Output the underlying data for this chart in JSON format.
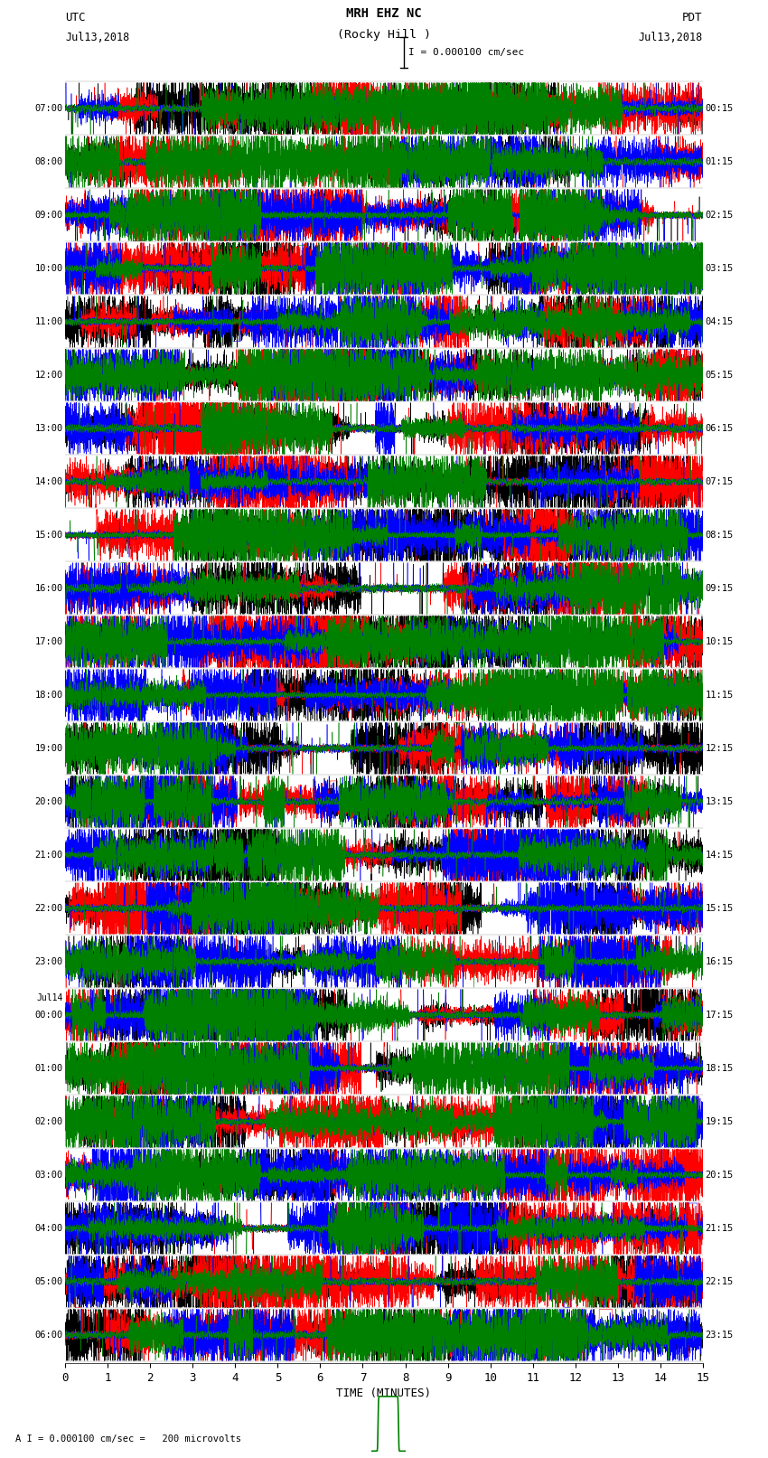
{
  "title_line1": "MRH EHZ NC",
  "title_line2": "(Rocky Hill )",
  "scale_label": "I = 0.000100 cm/sec",
  "bottom_label": "A I = 0.000100 cm/sec =   200 microvolts",
  "xlabel": "TIME (MINUTES)",
  "utc_times": [
    "07:00",
    "08:00",
    "09:00",
    "10:00",
    "11:00",
    "12:00",
    "13:00",
    "14:00",
    "15:00",
    "16:00",
    "17:00",
    "18:00",
    "19:00",
    "20:00",
    "21:00",
    "22:00",
    "23:00",
    "00:00",
    "01:00",
    "02:00",
    "03:00",
    "04:00",
    "05:00",
    "06:00"
  ],
  "pdt_times": [
    "00:15",
    "01:15",
    "02:15",
    "03:15",
    "04:15",
    "05:15",
    "06:15",
    "07:15",
    "08:15",
    "09:15",
    "10:15",
    "11:15",
    "12:15",
    "13:15",
    "14:15",
    "15:15",
    "16:15",
    "17:15",
    "18:15",
    "19:15",
    "20:15",
    "21:15",
    "22:15",
    "23:15"
  ],
  "jul14_label_row": 17,
  "n_rows": 24,
  "n_minutes": 15,
  "colors": [
    "black",
    "red",
    "blue",
    "green"
  ],
  "bg_color": "white",
  "fig_width": 8.5,
  "fig_height": 16.13,
  "dpi": 100,
  "x_ticks": [
    0,
    1,
    2,
    3,
    4,
    5,
    6,
    7,
    8,
    9,
    10,
    11,
    12,
    13,
    14,
    15
  ],
  "seed": 42
}
